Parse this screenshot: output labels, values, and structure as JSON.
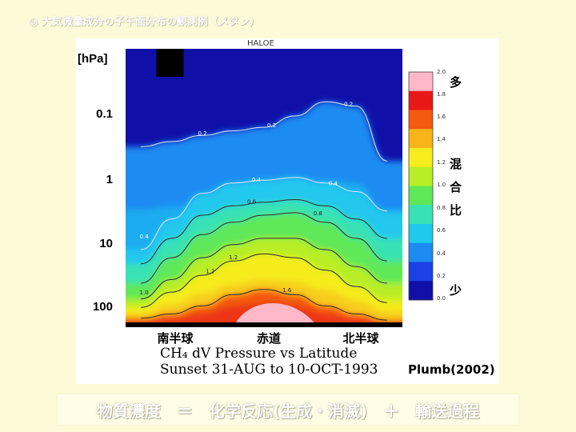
{
  "slide": {
    "title": "◎ 大気微量成分の子午面分布の観測例（メタン）",
    "equation": "物質濃度　＝　化学反応(生成・消滅)　＋　輸送過程"
  },
  "chart_data": {
    "type": "heatmap",
    "title": "HALOE",
    "caption_line1": "CH₄ dV Pressure vs Latitude",
    "caption_line2": "Sunset 31-AUG to 10-OCT-1993",
    "credit": "Plumb(2002)",
    "y_unit": "[hPa]",
    "y_scale": "log",
    "y_ticks": [
      "0.1",
      "1",
      "10",
      "100"
    ],
    "x_categories": [
      "南半球",
      "赤道",
      "北半球"
    ],
    "colorbar": {
      "min": 0.0,
      "max": 2.0,
      "tick_labels": [
        "2.0",
        "1.8",
        "1.6",
        "1.4",
        "1.2",
        "1.0",
        "0.8",
        "0.6",
        "0.4",
        "0.2",
        "0.0"
      ],
      "colors": [
        "#1010a8",
        "#1a40e6",
        "#1b8bf2",
        "#20c8ee",
        "#38e2b4",
        "#5ee858",
        "#b7ee25",
        "#f6ec1e",
        "#f8b418",
        "#f45a10",
        "#e81818",
        "#ffb8c8"
      ],
      "high_label": "多",
      "mid_label": [
        "混",
        "合",
        "比"
      ],
      "low_label": "少"
    },
    "contour_labels": [
      "0.2",
      "0.2",
      "0.2",
      "0.4",
      "0.4",
      "0.4",
      "0.6",
      "0.8",
      "1.2",
      "1.0",
      "1.2",
      "1.6"
    ],
    "series": [
      {
        "level": 0.2,
        "x": [
          -80,
          -60,
          -40,
          -20,
          0,
          20,
          40,
          60,
          80
        ],
        "pressure_hPa": [
          0.3,
          0.25,
          0.2,
          0.17,
          0.15,
          0.1,
          0.06,
          0.07,
          0.5
        ]
      },
      {
        "level": 0.4,
        "x": [
          -80,
          -60,
          -40,
          -20,
          0,
          20,
          40,
          60,
          80
        ],
        "pressure_hPa": [
          12,
          4,
          1.6,
          1.1,
          1.0,
          0.9,
          1.1,
          1.5,
          3
        ]
      },
      {
        "level": 0.6,
        "x": [
          -80,
          -60,
          -40,
          -20,
          0,
          20,
          40,
          60,
          80
        ],
        "pressure_hPa": [
          20,
          8,
          3.5,
          2.5,
          2.2,
          2.0,
          2.5,
          4,
          8
        ]
      },
      {
        "level": 0.8,
        "x": [
          -80,
          -60,
          -40,
          -20,
          0,
          20,
          40,
          60,
          80
        ],
        "pressure_hPa": [
          40,
          16,
          7,
          4.5,
          3.5,
          3.2,
          4.5,
          8,
          18
        ]
      },
      {
        "level": 1.0,
        "x": [
          -80,
          -60,
          -40,
          -20,
          0,
          20,
          40,
          60,
          80
        ],
        "pressure_hPa": [
          70,
          35,
          16,
          10,
          8,
          8,
          12,
          22,
          40
        ]
      },
      {
        "level": 1.2,
        "x": [
          -80,
          -60,
          -40,
          -20,
          0,
          20,
          40,
          60,
          80
        ],
        "pressure_hPa": [
          95,
          55,
          30,
          18,
          14,
          16,
          25,
          45,
          80
        ]
      },
      {
        "level": 1.6,
        "x": [
          -80,
          -60,
          -40,
          -20,
          0,
          20,
          40,
          60,
          80
        ],
        "pressure_hPa": [
          140,
          120,
          90,
          60,
          50,
          60,
          90,
          120,
          150
        ]
      }
    ]
  }
}
